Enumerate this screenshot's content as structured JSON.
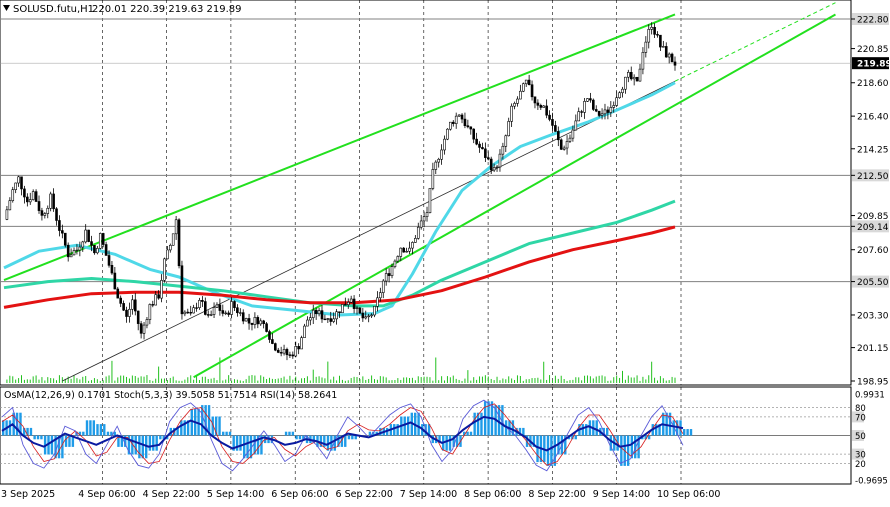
{
  "chart_data": {
    "type": "candlestick",
    "symbol_header": "SOLUSD.futu,H1",
    "ohlc_label": "220.01 220.39 219.63 219.89",
    "y_range": [
      198.95,
      222.8
    ],
    "current_price": 219.89,
    "price_axis_ticks": [
      "222.80",
      "220.85",
      "218.60",
      "216.40",
      "214.25",
      "212.50",
      "209.85",
      "209.14",
      "207.60",
      "205.50",
      "203.30",
      "201.15",
      "198.95"
    ],
    "highlighted_levels": [
      "222.80",
      "212.50",
      "209.14",
      "205.50"
    ],
    "time_labels": [
      "3 Sep 2025",
      "4 Sep 06:00",
      "4 Sep 22:00",
      "5 Sep 14:00",
      "6 Sep 06:00",
      "6 Sep 22:00",
      "7 Sep 14:00",
      "8 Sep 06:00",
      "8 Sep 22:00",
      "9 Sep 14:00",
      "10 Sep 06:00"
    ],
    "price_path": [
      [
        0,
        209.6
      ],
      [
        3,
        211.5
      ],
      [
        5,
        212.3
      ],
      [
        8,
        210.8
      ],
      [
        10,
        211.4
      ],
      [
        13,
        209.8
      ],
      [
        16,
        211.0
      ],
      [
        19,
        209.0
      ],
      [
        22,
        207.3
      ],
      [
        25,
        207.6
      ],
      [
        28,
        208.8
      ],
      [
        31,
        207.4
      ],
      [
        33,
        208.5
      ],
      [
        36,
        206.6
      ],
      [
        39,
        204.6
      ],
      [
        42,
        203.1
      ],
      [
        44,
        204.3
      ],
      [
        47,
        202.0
      ],
      [
        50,
        203.9
      ],
      [
        53,
        204.6
      ],
      [
        55,
        206.8
      ],
      [
        57,
        207.9
      ],
      [
        59,
        209.6
      ],
      [
        61,
        203.6
      ],
      [
        64,
        203.2
      ],
      [
        67,
        204.4
      ],
      [
        70,
        203.0
      ],
      [
        73,
        203.9
      ],
      [
        76,
        203.2
      ],
      [
        78,
        204.0
      ],
      [
        81,
        203.4
      ],
      [
        84,
        202.8
      ],
      [
        87,
        203.0
      ],
      [
        90,
        202.5
      ],
      [
        92,
        201.4
      ],
      [
        95,
        200.9
      ],
      [
        98,
        200.6
      ],
      [
        101,
        201.3
      ],
      [
        104,
        203.0
      ],
      [
        107,
        203.5
      ],
      [
        110,
        203.1
      ],
      [
        113,
        203.2
      ],
      [
        116,
        203.9
      ],
      [
        119,
        204.5
      ],
      [
        121,
        203.5
      ],
      [
        124,
        202.9
      ],
      [
        127,
        203.6
      ],
      [
        130,
        205.5
      ],
      [
        133,
        206.5
      ],
      [
        136,
        207.8
      ],
      [
        139,
        207.5
      ],
      [
        142,
        209.0
      ],
      [
        145,
        210.1
      ],
      [
        147,
        212.6
      ],
      [
        150,
        214.4
      ],
      [
        153,
        215.9
      ],
      [
        156,
        216.6
      ],
      [
        159,
        215.6
      ],
      [
        162,
        214.6
      ],
      [
        165,
        213.8
      ],
      [
        168,
        212.8
      ],
      [
        171,
        214.2
      ],
      [
        174,
        216.8
      ],
      [
        177,
        217.9
      ],
      [
        179,
        218.6
      ],
      [
        182,
        217.4
      ],
      [
        185,
        217.0
      ],
      [
        188,
        215.8
      ],
      [
        191,
        214.2
      ],
      [
        194,
        215.0
      ],
      [
        197,
        216.5
      ],
      [
        200,
        217.6
      ],
      [
        203,
        216.5
      ],
      [
        206,
        216.6
      ],
      [
        208,
        217.0
      ],
      [
        211,
        218.2
      ],
      [
        214,
        219.0
      ],
      [
        217,
        218.5
      ],
      [
        219,
        220.8
      ],
      [
        222,
        222.5
      ],
      [
        225,
        221.0
      ],
      [
        227,
        220.5
      ],
      [
        230,
        219.89
      ]
    ],
    "series": [
      {
        "name": "MA fast",
        "color": "#4fd8e8",
        "values": [
          [
            0,
            206.4
          ],
          [
            12,
            207.5
          ],
          [
            25,
            207.9
          ],
          [
            38,
            207.3
          ],
          [
            50,
            206.3
          ],
          [
            60,
            205.8
          ],
          [
            72,
            204.8
          ],
          [
            85,
            203.9
          ],
          [
            100,
            203.6
          ],
          [
            115,
            203.3
          ],
          [
            127,
            203.4
          ],
          [
            133,
            203.9
          ],
          [
            140,
            206.0
          ],
          [
            148,
            208.8
          ],
          [
            157,
            211.5
          ],
          [
            167,
            213.1
          ],
          [
            177,
            214.4
          ],
          [
            188,
            215.2
          ],
          [
            200,
            216.0
          ],
          [
            210,
            216.8
          ],
          [
            222,
            217.8
          ],
          [
            230,
            218.6
          ]
        ]
      },
      {
        "name": "MA medium",
        "color": "#2fd6a6",
        "values": [
          [
            0,
            205.1
          ],
          [
            15,
            205.5
          ],
          [
            30,
            205.7
          ],
          [
            45,
            205.5
          ],
          [
            60,
            205.2
          ],
          [
            75,
            204.9
          ],
          [
            90,
            204.5
          ],
          [
            105,
            204.1
          ],
          [
            120,
            203.9
          ],
          [
            130,
            203.9
          ],
          [
            140,
            204.6
          ],
          [
            150,
            205.6
          ],
          [
            165,
            206.8
          ],
          [
            180,
            208.0
          ],
          [
            195,
            208.7
          ],
          [
            210,
            209.4
          ],
          [
            222,
            210.2
          ],
          [
            230,
            210.8
          ]
        ]
      },
      {
        "name": "MA slow",
        "color": "#e31212",
        "values": [
          [
            0,
            203.8
          ],
          [
            15,
            204.3
          ],
          [
            30,
            204.7
          ],
          [
            45,
            204.8
          ],
          [
            60,
            204.8
          ],
          [
            75,
            204.6
          ],
          [
            90,
            204.3
          ],
          [
            105,
            204.1
          ],
          [
            120,
            204.1
          ],
          [
            135,
            204.3
          ],
          [
            150,
            204.9
          ],
          [
            165,
            205.8
          ],
          [
            180,
            206.8
          ],
          [
            195,
            207.6
          ],
          [
            210,
            208.2
          ],
          [
            222,
            208.7
          ],
          [
            230,
            209.1
          ]
        ]
      }
    ],
    "trend_channel": [
      {
        "name": "upper",
        "color": "#22e01e",
        "from": [
          0,
          205.6
        ],
        "to": [
          230,
          223.1
        ]
      },
      {
        "name": "lower",
        "color": "#22e01e",
        "from": [
          65,
          199.2
        ],
        "to": [
          285,
          223.1
        ]
      },
      {
        "name": "middle",
        "color": "#2a2a2a",
        "from": [
          20,
          198.95
        ],
        "to": [
          230,
          218.7
        ]
      }
    ],
    "oscillator": {
      "label": "OsMA(12,26,9) 0.1701  Stoch(5,3,3) 39.5058 51.7514  RSI(14) 58.2641",
      "levels": [
        "0.9931",
        "80",
        "70",
        "50",
        "30",
        "20",
        "-0.9695"
      ],
      "osma": [
        0.4,
        0.6,
        0.2,
        -0.1,
        -0.5,
        -0.6,
        -0.3,
        0.1,
        0.4,
        0.3,
        0.1,
        -0.3,
        -0.5,
        -0.6,
        -0.4,
        -0.1,
        0.2,
        0.4,
        0.7,
        0.8,
        0.5,
        0.1,
        -0.4,
        -0.6,
        -0.5,
        -0.2,
        0.0,
        0.1,
        -0.1,
        -0.2,
        -0.3,
        -0.4,
        -0.3,
        -0.1,
        0.0,
        0.1,
        0.2,
        0.3,
        0.5,
        0.6,
        0.3,
        -0.2,
        -0.4,
        -0.3,
        0.1,
        0.6,
        0.9,
        0.8,
        0.4,
        0.2,
        -0.3,
        -0.7,
        -0.8,
        -0.5,
        -0.1,
        0.3,
        0.4,
        0.2,
        -0.4,
        -0.8,
        -0.6,
        -0.1,
        0.3,
        0.6,
        0.4,
        0.17
      ],
      "rsi": [
        55,
        62,
        50,
        42,
        38,
        45,
        52,
        48,
        44,
        40,
        45,
        50,
        46,
        42,
        38,
        40,
        52,
        60,
        66,
        62,
        50,
        42,
        36,
        40,
        44,
        48,
        45,
        40,
        42,
        46,
        44,
        40,
        46,
        52,
        50,
        48,
        52,
        56,
        60,
        64,
        58,
        48,
        42,
        46,
        56,
        64,
        70,
        68,
        60,
        55,
        48,
        38,
        34,
        40,
        48,
        56,
        60,
        55,
        45,
        38,
        40,
        48,
        56,
        62,
        60,
        58
      ],
      "stoch": [
        70,
        80,
        40,
        20,
        15,
        30,
        60,
        55,
        30,
        20,
        40,
        60,
        35,
        18,
        15,
        30,
        65,
        80,
        85,
        75,
        45,
        20,
        12,
        25,
        40,
        55,
        40,
        22,
        30,
        50,
        40,
        25,
        50,
        70,
        60,
        48,
        60,
        72,
        80,
        84,
        70,
        40,
        22,
        35,
        68,
        82,
        88,
        80,
        60,
        50,
        35,
        18,
        12,
        30,
        52,
        72,
        80,
        65,
        40,
        20,
        25,
        50,
        70,
        82,
        62,
        39.5
      ],
      "stoch_signal": [
        65,
        72,
        60,
        38,
        22,
        25,
        45,
        55,
        45,
        28,
        32,
        48,
        48,
        32,
        20,
        22,
        45,
        65,
        78,
        80,
        65,
        38,
        22,
        20,
        30,
        45,
        48,
        35,
        28,
        38,
        44,
        35,
        38,
        55,
        62,
        56,
        55,
        62,
        72,
        80,
        76,
        58,
        35,
        30,
        48,
        66,
        80,
        84,
        72,
        58,
        45,
        30,
        18,
        22,
        38,
        58,
        72,
        72,
        56,
        38,
        28,
        38,
        56,
        72,
        70,
        51.8
      ]
    }
  }
}
